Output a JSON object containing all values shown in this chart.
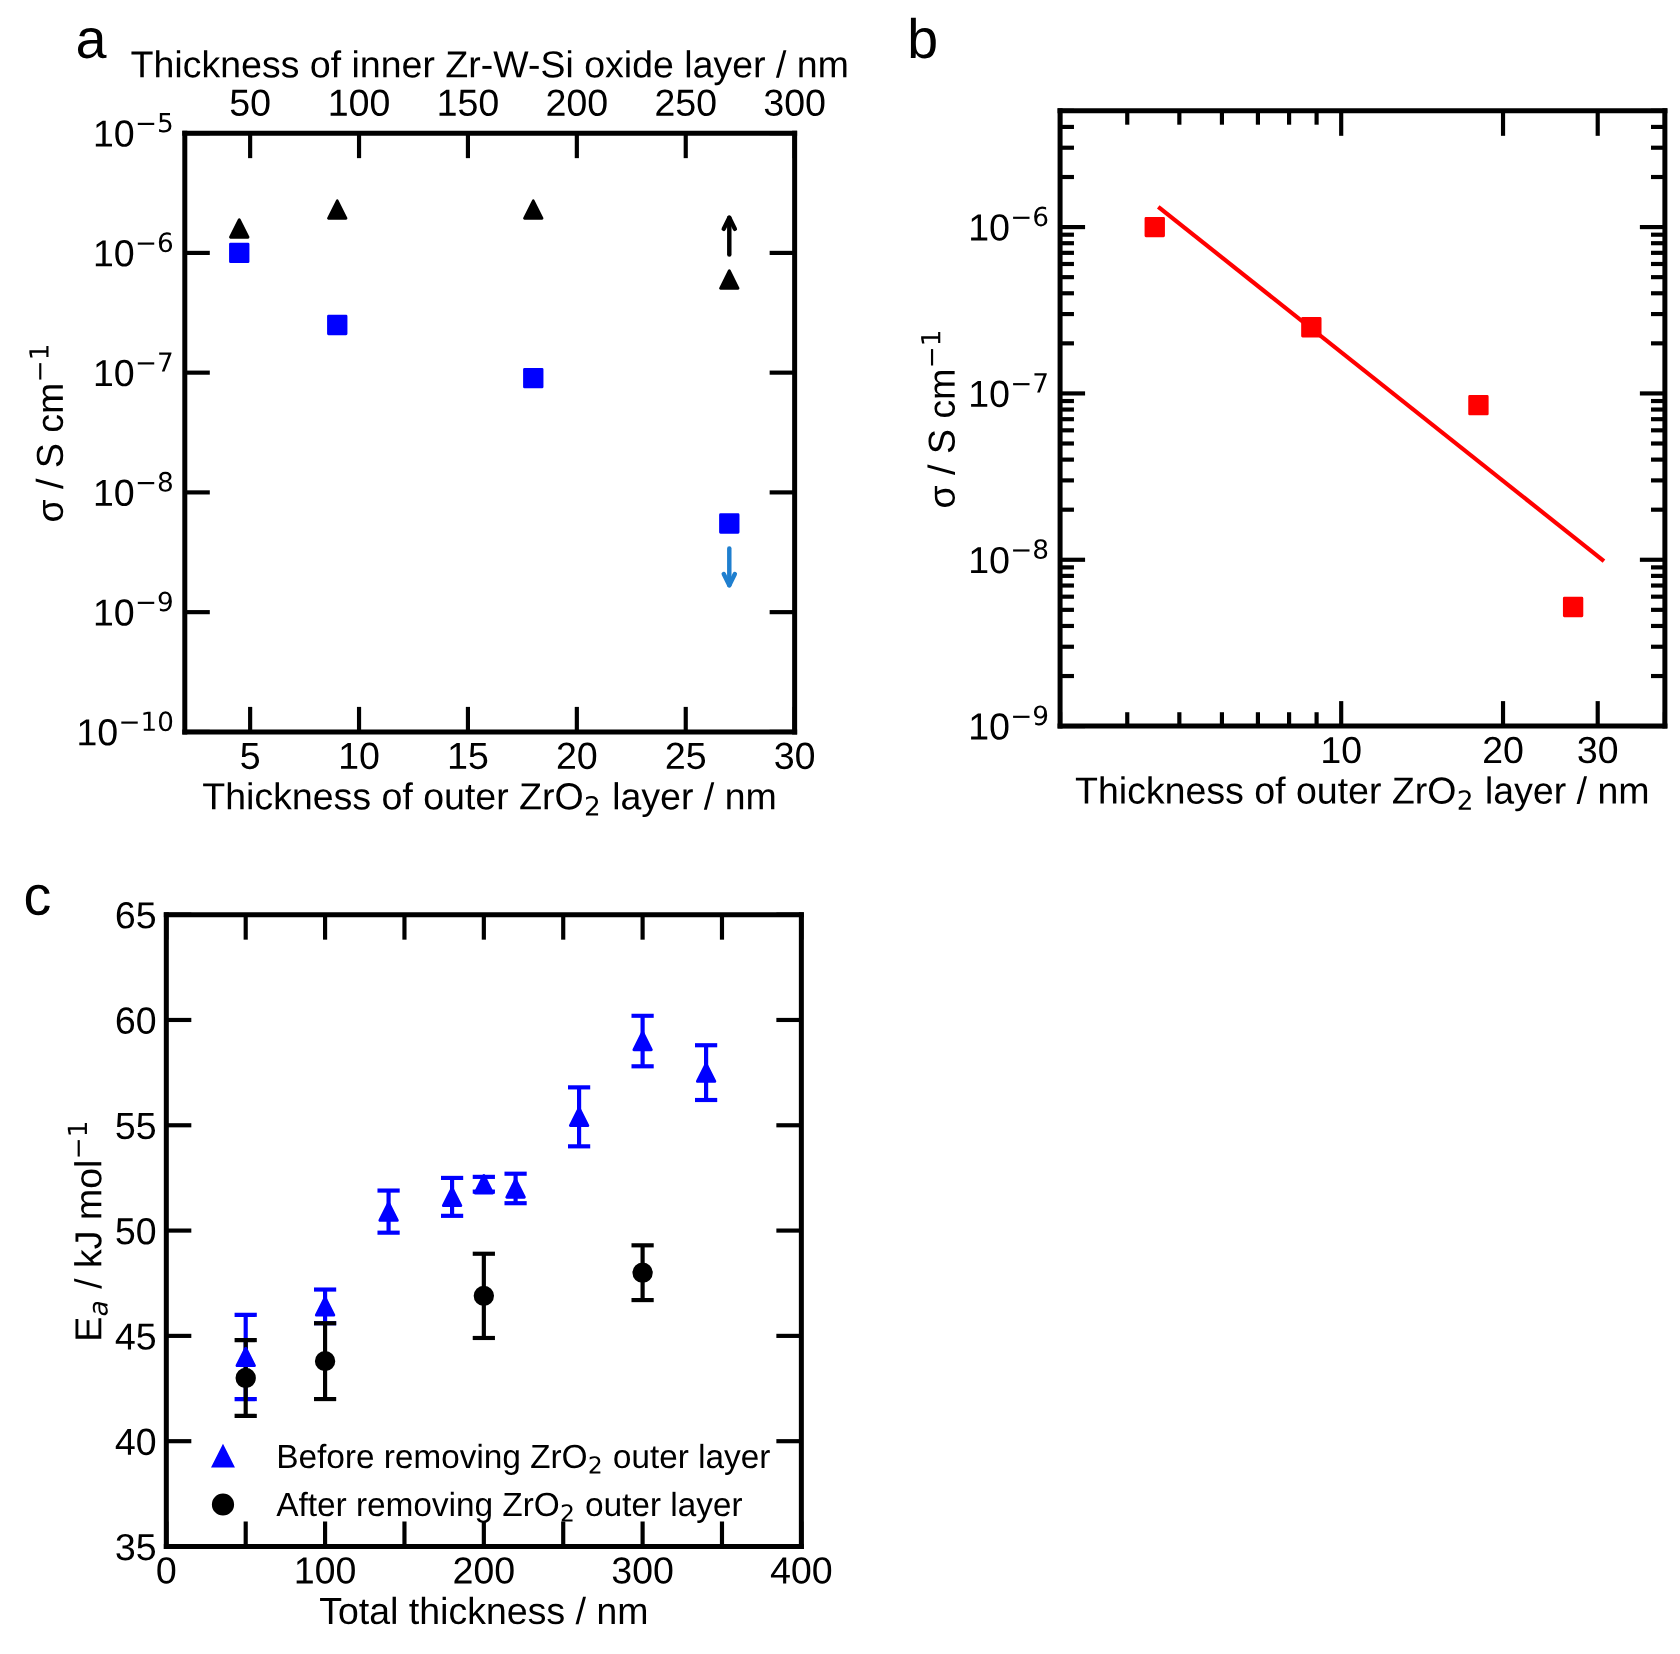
{
  "chart_data": [
    {
      "type": "scatter",
      "annotations": [
        "a"
      ],
      "xlabel": "Thickness of outer ZrO$_{2}$ layer / nm",
      "x2label": "Thickness of inner Zr-W-Si oxide layer / nm",
      "ylabel": "σ / S cm$^{−1}$",
      "log": "y",
      "xlim": [
        2,
        30
      ],
      "xticks": [
        5,
        10,
        15,
        20,
        25,
        30
      ],
      "x2lim": [
        20,
        300
      ],
      "x2ticks": [
        50,
        100,
        150,
        200,
        250,
        300
      ],
      "ylim": [
        1e-10,
        1e-05
      ],
      "yticks": [
        {
          "value": 1e-10,
          "label": "10$^{−10}$"
        },
        {
          "value": 1e-09,
          "label": "10$^{−9}$"
        },
        {
          "value": 1e-08,
          "label": "10$^{−8}$"
        },
        {
          "value": 1e-07,
          "label": "10$^{−7}$"
        },
        {
          "value": 1e-06,
          "label": "10$^{−6}$"
        },
        {
          "value": 1e-05,
          "label": "10$^{−5}$"
        }
      ],
      "series": [
        {
          "color": "#000000",
          "marker": "triangle",
          "x": [
            4.5,
            9,
            18,
            27
          ],
          "values": [
            1.6e-06,
            2.3e-06,
            2.3e-06,
            6e-07
          ]
        },
        {
          "color": "#0000ff",
          "marker": "square",
          "x": [
            4.5,
            9,
            18,
            27
          ],
          "values": [
            1e-06,
            2.5e-07,
            9e-08,
            5.5e-09
          ]
        }
      ]
    },
    {
      "type": "scatter",
      "annotations": [
        "b"
      ],
      "xlabel": "Thickness of outer ZrO$_{2}$ layer / nm",
      "ylabel": "σ / S cm$^{−1}$",
      "log": "xy",
      "xlim": [
        3,
        40
      ],
      "xticks": [
        10,
        20,
        30
      ],
      "ylim": [
        1e-09,
        5e-06
      ],
      "yticks": [
        {
          "value": 1e-09,
          "label": "10$^{−9}$"
        },
        {
          "value": 1e-08,
          "label": "10$^{−8}$"
        },
        {
          "value": 1e-07,
          "label": "10$^{−7}$"
        },
        {
          "value": 1e-06,
          "label": "10$^{−6}$"
        }
      ],
      "series": [
        {
          "color": "#ff0000",
          "marker": "square",
          "x": [
            4.5,
            8.8,
            18,
            27
          ],
          "values": [
            1e-06,
            2.5e-07,
            8.5e-08,
            5.2e-09
          ]
        },
        {
          "type": "line",
          "color": "#ff0000",
          "marker": "none",
          "x": [
            4.6,
            30.6
          ],
          "values": [
            1.3e-06,
            1e-08
          ]
        }
      ]
    },
    {
      "type": "scatter",
      "annotations": [
        "c"
      ],
      "xlabel": "Total thickness / nm",
      "ylabel": "E$_{a}$ / kJ mol$^{−1}$",
      "legend": "bottom left",
      "xlim": [
        0,
        400
      ],
      "xticks": [
        0,
        {
          "value": 50,
          "label": null
        },
        100,
        {
          "value": 150,
          "label": null
        },
        200,
        {
          "value": 250,
          "label": null
        },
        300,
        {
          "value": 350,
          "label": null
        },
        400
      ],
      "ylim": [
        35,
        65
      ],
      "yticks": [
        35,
        40,
        45,
        50,
        55,
        60,
        65
      ],
      "series": [
        {
          "name": "Before removing ZrO$_{2}$ outer layer",
          "color": "#0000ff",
          "marker": "triangle",
          "x": [
            50,
            100,
            140,
            180,
            200,
            220,
            260,
            300,
            340
          ],
          "values": [
            44,
            46.4,
            50.9,
            51.6,
            52.2,
            52,
            55.4,
            59,
            57.5
          ],
          "errors": [
            2,
            0.8,
            1.0,
            0.9,
            0.35,
            0.7,
            1.4,
            1.2,
            1.3
          ]
        },
        {
          "name": "After removing ZrO$_{2}$ outer layer",
          "color": "#000000",
          "marker": "circle",
          "x": [
            50,
            100,
            200,
            300
          ],
          "values": [
            43,
            43.8,
            46.9,
            48
          ],
          "errors": [
            1.8,
            1.8,
            2.0,
            1.3
          ]
        }
      ]
    }
  ]
}
